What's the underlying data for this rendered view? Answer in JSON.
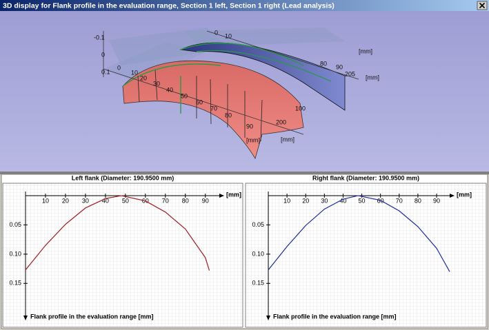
{
  "window": {
    "title": "3D display for Flank profile in the evaluation range, Section 1 left, Section 1 right (Lead analysis)"
  },
  "view_3d": {
    "labels": [
      "-0.1",
      "0",
      "0.1",
      "0",
      "10",
      "20",
      "30",
      "40",
      "50",
      "60",
      "70",
      "80",
      "90",
      "100",
      "200",
      "[mm]",
      "[mm]",
      "0",
      "10",
      "80",
      "90",
      "205",
      "[mm]",
      "[mm]"
    ]
  },
  "chart_data": [
    {
      "type": "line",
      "title": "Left flank (Diameter: 190.9500 mm)",
      "x_label": "[mm]",
      "y_label": "Flank profile in the evaluation range [mm]",
      "xlim": [
        0,
        97
      ],
      "xticks": [
        10,
        20,
        30,
        40,
        50,
        60,
        70,
        80,
        90
      ],
      "ylim": [
        0,
        0.205
      ],
      "yticks": [
        0.05,
        {
          "value": 0.1,
          "label": "0.10"
        },
        0.15
      ],
      "y_inverted": true,
      "series": [
        {
          "color": "#a3282f",
          "x": [
            0,
            10,
            20,
            30,
            40,
            48,
            60,
            70,
            80,
            90,
            92
          ],
          "values": [
            0.127,
            0.085,
            0.049,
            0.021,
            0.005,
            0,
            0.009,
            0.028,
            0.057,
            0.106,
            0.128
          ]
        }
      ]
    },
    {
      "type": "line",
      "title": "Right flank (Diameter: 190.9500 mm)",
      "x_label": "[mm]",
      "y_label": "Flank profile in the evaluation range [mm]",
      "xlim": [
        0,
        97
      ],
      "xticks": [
        10,
        20,
        30,
        40,
        50,
        60,
        70,
        80,
        90
      ],
      "ylim": [
        0,
        0.205
      ],
      "yticks": [
        0.05,
        {
          "value": 0.1,
          "label": "0.10"
        },
        0.15
      ],
      "y_inverted": true,
      "series": [
        {
          "color": "#2d3a9e",
          "x": [
            0,
            10,
            20,
            30,
            40,
            48,
            60,
            70,
            80,
            90,
            97
          ],
          "values": [
            0.127,
            0.087,
            0.051,
            0.023,
            0.006,
            0,
            0.008,
            0.026,
            0.053,
            0.09,
            0.13
          ]
        }
      ]
    }
  ]
}
